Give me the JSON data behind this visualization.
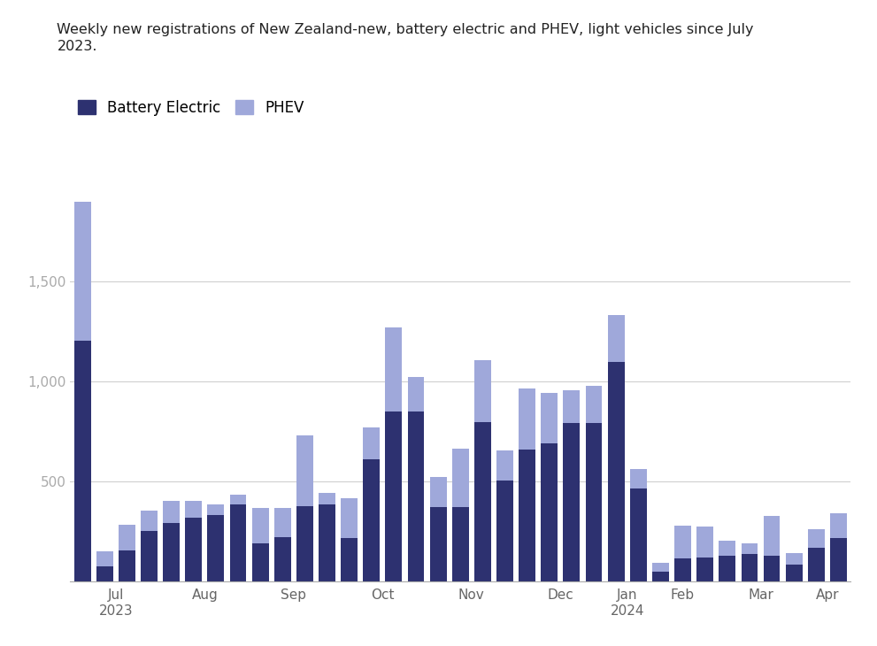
{
  "title": "Weekly new registrations of New Zealand-new, battery electric and PHEV, light vehicles since July\n2023.",
  "battery_electric_color": "#2d3170",
  "phev_color": "#9fa8da",
  "background_color": "#ffffff",
  "grid_color": "#d0d0d0",
  "ylim": [
    0,
    2000
  ],
  "yticks": [
    500,
    1000,
    1500
  ],
  "legend_labels": [
    "Battery Electric",
    "PHEV"
  ],
  "battery_electric": [
    1200,
    75,
    155,
    250,
    290,
    320,
    330,
    385,
    190,
    220,
    375,
    385,
    215,
    610,
    850,
    850,
    370,
    370,
    795,
    505,
    660,
    690,
    790,
    790,
    1095,
    465,
    50,
    115,
    120,
    130,
    135,
    130,
    85,
    170,
    215
  ],
  "phev": [
    695,
    75,
    130,
    105,
    110,
    80,
    55,
    50,
    175,
    145,
    355,
    55,
    200,
    160,
    420,
    170,
    150,
    295,
    310,
    150,
    305,
    250,
    165,
    185,
    235,
    95,
    45,
    165,
    155,
    75,
    55,
    195,
    55,
    90,
    125
  ],
  "month_starts": [
    0,
    4,
    8,
    12,
    16,
    20,
    24,
    26,
    29,
    33
  ],
  "month_ends": [
    3,
    7,
    11,
    15,
    19,
    23,
    25,
    28,
    32,
    34
  ],
  "month_labels": [
    "Jul\n2023",
    "Aug",
    "Sep",
    "Oct",
    "Nov",
    "Dec",
    "Jan\n2024",
    "Feb",
    "Mar",
    "Apr"
  ],
  "title_fontsize": 11.5,
  "tick_fontsize": 11
}
